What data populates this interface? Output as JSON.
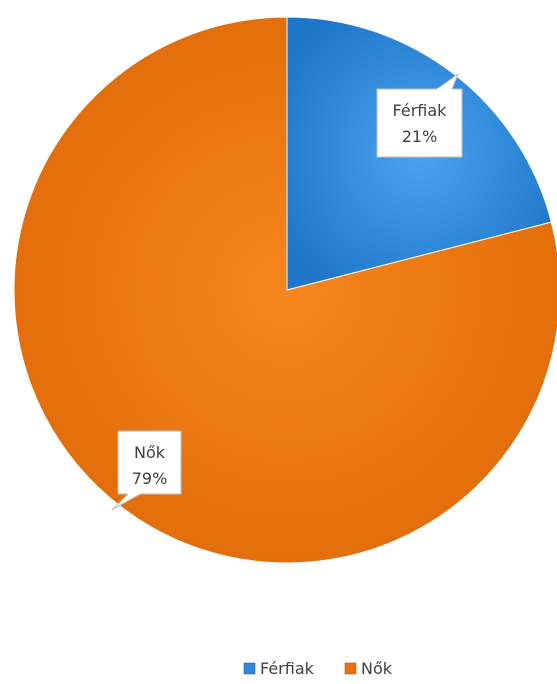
{
  "chart_data": {
    "type": "pie",
    "categories": [
      "Férfiak",
      "Nők"
    ],
    "values": [
      21,
      79
    ],
    "value_labels": [
      "21%",
      "79%"
    ],
    "colors": [
      "#2e86de",
      "#e8700f"
    ],
    "legend_position": "bottom",
    "title": ""
  }
}
